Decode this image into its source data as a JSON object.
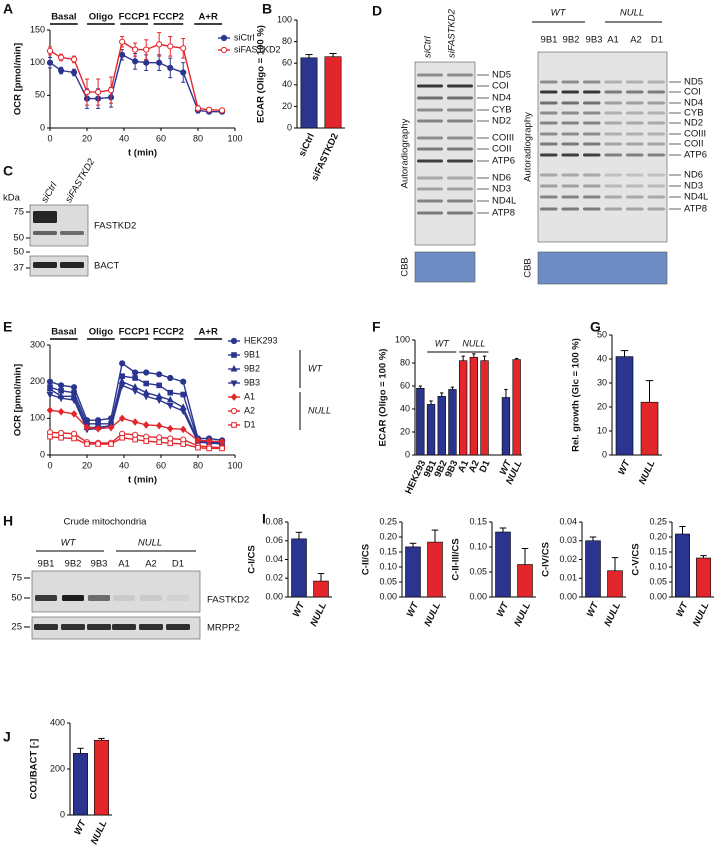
{
  "chart_data": [
    {
      "type": "line",
      "panel": "A",
      "ylabel": "OCR [pmol/min]",
      "xlabel": "t (min)",
      "phases": [
        "Basal",
        "Oligo",
        "FCCP1",
        "FCCP2",
        "A+R"
      ],
      "x": [
        0,
        6,
        13,
        20,
        26,
        33,
        39,
        46,
        52,
        59,
        65,
        72,
        80,
        86,
        93
      ],
      "xlim": [
        0,
        100
      ],
      "xticks": [
        0,
        20,
        40,
        60,
        80,
        100
      ],
      "ylim": [
        0,
        150
      ],
      "yticks": [
        0,
        50,
        100,
        150
      ],
      "legend": "upper right",
      "series": [
        {
          "name": "siCtrl",
          "color": "#2b3590",
          "marker": "circle",
          "open": false,
          "values": [
            100,
            88,
            85,
            45,
            45,
            47,
            112,
            102,
            100,
            100,
            92,
            85,
            27,
            25,
            25
          ],
          "errors": [
            8,
            5,
            5,
            15,
            15,
            15,
            8,
            12,
            12,
            12,
            15,
            15,
            4,
            3,
            3
          ]
        },
        {
          "name": "siFASTKD2",
          "color": "#e3262b",
          "marker": "circle",
          "open": true,
          "values": [
            118,
            108,
            105,
            55,
            55,
            58,
            132,
            120,
            120,
            128,
            125,
            122,
            30,
            28,
            27
          ],
          "errors": [
            6,
            5,
            5,
            20,
            20,
            20,
            8,
            10,
            15,
            18,
            15,
            15,
            4,
            3,
            3
          ]
        }
      ]
    },
    {
      "type": "bar",
      "panel": "B",
      "ylabel": "ECAR (Oligo = 100 %)",
      "categories": [
        "siCtrl",
        "siFASTKD2"
      ],
      "values": [
        65,
        66
      ],
      "errors": [
        3,
        3
      ],
      "colors": [
        "#2b3590",
        "#e3262b"
      ],
      "ylim": [
        0,
        100
      ],
      "yticks": [
        0,
        20,
        40,
        60,
        80,
        100
      ]
    },
    {
      "type": "line",
      "panel": "E",
      "ylabel": "OCR [pmol/min]",
      "xlabel": "t (min)",
      "phases": [
        "Basal",
        "Oligo",
        "FCCP1",
        "FCCP2",
        "A+R"
      ],
      "x": [
        0,
        6,
        13,
        20,
        26,
        33,
        39,
        46,
        52,
        59,
        65,
        72,
        80,
        86,
        93
      ],
      "xlim": [
        0,
        100
      ],
      "xticks": [
        0,
        20,
        40,
        60,
        80,
        100
      ],
      "ylim": [
        0,
        300
      ],
      "yticks": [
        0,
        100,
        200,
        300
      ],
      "legend": "right",
      "group_labels": [
        "WT",
        "NULL"
      ],
      "series": [
        {
          "name": "HEK293",
          "color": "#2b3590",
          "marker": "circle",
          "open": false,
          "values": [
            200,
            190,
            185,
            95,
            95,
            100,
            250,
            225,
            225,
            220,
            210,
            200,
            45,
            45,
            40
          ]
        },
        {
          "name": "9B1",
          "color": "#2b3590",
          "marker": "square",
          "open": false,
          "values": [
            185,
            175,
            170,
            85,
            85,
            85,
            215,
            210,
            195,
            190,
            170,
            165,
            40,
            38,
            35
          ]
        },
        {
          "name": "9B2",
          "color": "#2b3590",
          "marker": "triangle",
          "open": false,
          "values": [
            180,
            160,
            160,
            75,
            75,
            80,
            200,
            185,
            170,
            160,
            150,
            130,
            38,
            35,
            32
          ]
        },
        {
          "name": "9B3",
          "color": "#2b3590",
          "marker": "triangle-down",
          "open": false,
          "values": [
            165,
            155,
            150,
            70,
            72,
            75,
            190,
            175,
            160,
            150,
            135,
            120,
            35,
            33,
            30
          ]
        },
        {
          "name": "A1",
          "color": "#e3262b",
          "marker": "diamond",
          "open": false,
          "values": [
            122,
            118,
            112,
            75,
            72,
            75,
            100,
            90,
            82,
            80,
            72,
            70,
            40,
            38,
            36
          ]
        },
        {
          "name": "A2",
          "color": "#e3262b",
          "marker": "circle",
          "open": true,
          "values": [
            62,
            60,
            58,
            35,
            33,
            33,
            58,
            55,
            50,
            48,
            45,
            42,
            25,
            22,
            20
          ]
        },
        {
          "name": "D1",
          "color": "#e3262b",
          "marker": "square",
          "open": true,
          "values": [
            50,
            47,
            45,
            30,
            30,
            30,
            47,
            42,
            38,
            35,
            32,
            30,
            20,
            18,
            18
          ]
        }
      ]
    },
    {
      "type": "bar",
      "panel": "F",
      "ylabel": "ECAR (Oligo = 100 %)",
      "categories": [
        "HEK293",
        "9B1",
        "9B2",
        "9B3",
        "A1",
        "A2",
        "D1",
        null,
        "WT",
        "NULL"
      ],
      "values": [
        58,
        44,
        51,
        57,
        82,
        85,
        82,
        null,
        50,
        83
      ],
      "errors": [
        2,
        3,
        3,
        2,
        4,
        3,
        4,
        null,
        7,
        1
      ],
      "colors": [
        "#2b3590",
        "#2b3590",
        "#2b3590",
        "#2b3590",
        "#e3262b",
        "#e3262b",
        "#e3262b",
        null,
        "#2b3590",
        "#e3262b"
      ],
      "annotations": [
        "WT",
        "NULL"
      ],
      "ylim": [
        0,
        100
      ],
      "yticks": [
        0,
        20,
        40,
        60,
        80,
        100
      ]
    },
    {
      "type": "bar",
      "panel": "G",
      "ylabel": "Rel. growth (Glc = 100 %)",
      "categories": [
        "WT",
        "NULL"
      ],
      "values": [
        41,
        22
      ],
      "errors": [
        2.5,
        9
      ],
      "colors": [
        "#2b3590",
        "#e3262b"
      ],
      "ylim": [
        0,
        50
      ],
      "yticks": [
        0,
        10,
        20,
        30,
        40,
        50
      ]
    },
    {
      "type": "bar",
      "panel": "I",
      "ylabel": "C-I/CS",
      "categories": [
        "WT",
        "NULL"
      ],
      "values": [
        0.062,
        0.017
      ],
      "errors": [
        0.007,
        0.008
      ],
      "colors": [
        "#2b3590",
        "#e3262b"
      ],
      "ylim": [
        0,
        0.08
      ],
      "yticks": [
        {
          "value": 0,
          "label": "0.00"
        },
        0.02,
        0.04,
        0.06,
        0.08
      ]
    },
    {
      "type": "bar",
      "ylabel": "C-II/CS",
      "categories": [
        "WT",
        "NULL"
      ],
      "values": [
        0.167,
        0.183
      ],
      "errors": [
        0.012,
        0.04
      ],
      "colors": [
        "#2b3590",
        "#e3262b"
      ],
      "ylim": [
        0,
        0.25
      ],
      "yticks": [
        {
          "value": 0,
          "label": "0.00"
        },
        0.05,
        {
          "value": 0.1,
          "label": "0.10"
        },
        0.15,
        {
          "value": 0.2,
          "label": "0.20"
        },
        0.25
      ]
    },
    {
      "type": "bar",
      "ylabel": "C-II-III/CS",
      "categories": [
        "WT",
        "NULL"
      ],
      "values": [
        0.13,
        0.065
      ],
      "errors": [
        0.008,
        0.032
      ],
      "colors": [
        "#2b3590",
        "#e3262b"
      ],
      "ylim": [
        0,
        0.15
      ],
      "yticks": [
        {
          "value": 0,
          "label": "0.00"
        },
        0.05,
        {
          "value": 0.1,
          "label": "0.10"
        },
        0.15
      ]
    },
    {
      "type": "bar",
      "ylabel": "C-IV/CS",
      "categories": [
        "WT",
        "NULL"
      ],
      "values": [
        0.03,
        0.014
      ],
      "errors": [
        0.002,
        0.007
      ],
      "colors": [
        "#2b3590",
        "#e3262b"
      ],
      "ylim": [
        0,
        0.04
      ],
      "yticks": [
        {
          "value": 0,
          "label": "0.00"
        },
        0.01,
        0.02,
        {
          "value": 0.03,
          "label": "0.03"
        },
        0.04
      ]
    },
    {
      "type": "bar",
      "ylabel": "C-V/CS",
      "categories": [
        "WT",
        "NULL"
      ],
      "values": [
        0.21,
        0.13
      ],
      "errors": [
        0.025,
        0.008
      ],
      "colors": [
        "#2b3590",
        "#e3262b"
      ],
      "ylim": [
        0,
        0.25
      ],
      "yticks": [
        {
          "value": 0,
          "label": "0.00"
        },
        0.05,
        {
          "value": 0.1,
          "label": "0.10"
        },
        0.15,
        {
          "value": 0.2,
          "label": "0.20"
        },
        0.25
      ]
    },
    {
      "type": "bar",
      "panel": "J",
      "ylabel": "CO1/BACT [-]",
      "categories": [
        "WT",
        "NULL"
      ],
      "values": [
        268,
        325
      ],
      "errors": [
        22,
        8
      ],
      "colors": [
        "#2b3590",
        "#e3262b"
      ],
      "ylim": [
        0,
        400
      ],
      "yticks": [
        0,
        200,
        400
      ]
    }
  ],
  "blots": [
    {
      "panel": "C",
      "lanes": [
        "siCtrl",
        "siFASTKD2"
      ],
      "kda_label": "kDa",
      "kda": [
        75,
        50,
        50,
        37
      ],
      "bands": [
        "FASTKD2",
        "BACT"
      ]
    },
    {
      "panel": "D",
      "lanes": [
        "siCtrl",
        "siFASTKD2"
      ],
      "method": "Autoradiography",
      "bands": [
        "ND5",
        "COI",
        "ND4",
        "CYB",
        "ND2",
        "COIII",
        "COII",
        "ATP6",
        "ND6",
        "ND3",
        "ND4L",
        "ATP8"
      ],
      "stain": "CBB"
    },
    {
      "group_labels": [
        "WT",
        "NULL"
      ],
      "lanes": [
        "9B1",
        "9B2",
        "9B3",
        "A1",
        "A2",
        "D1"
      ],
      "method": "Autoradiography",
      "bands": [
        "ND5",
        "COI",
        "ND4",
        "CYB",
        "ND2",
        "COIII",
        "COII",
        "ATP6",
        "ND6",
        "ND3",
        "ND4L",
        "ATP8"
      ],
      "stain": "CBB"
    },
    {
      "panel": "H",
      "title": "Crude mitochondria",
      "group_labels": [
        "WT",
        "NULL"
      ],
      "lanes": [
        "9B1",
        "9B2",
        "9B3",
        "A1",
        "A2",
        "D1"
      ],
      "kda": [
        75,
        50,
        25
      ],
      "bands": [
        "FASTKD2",
        "MRPP2"
      ]
    }
  ]
}
